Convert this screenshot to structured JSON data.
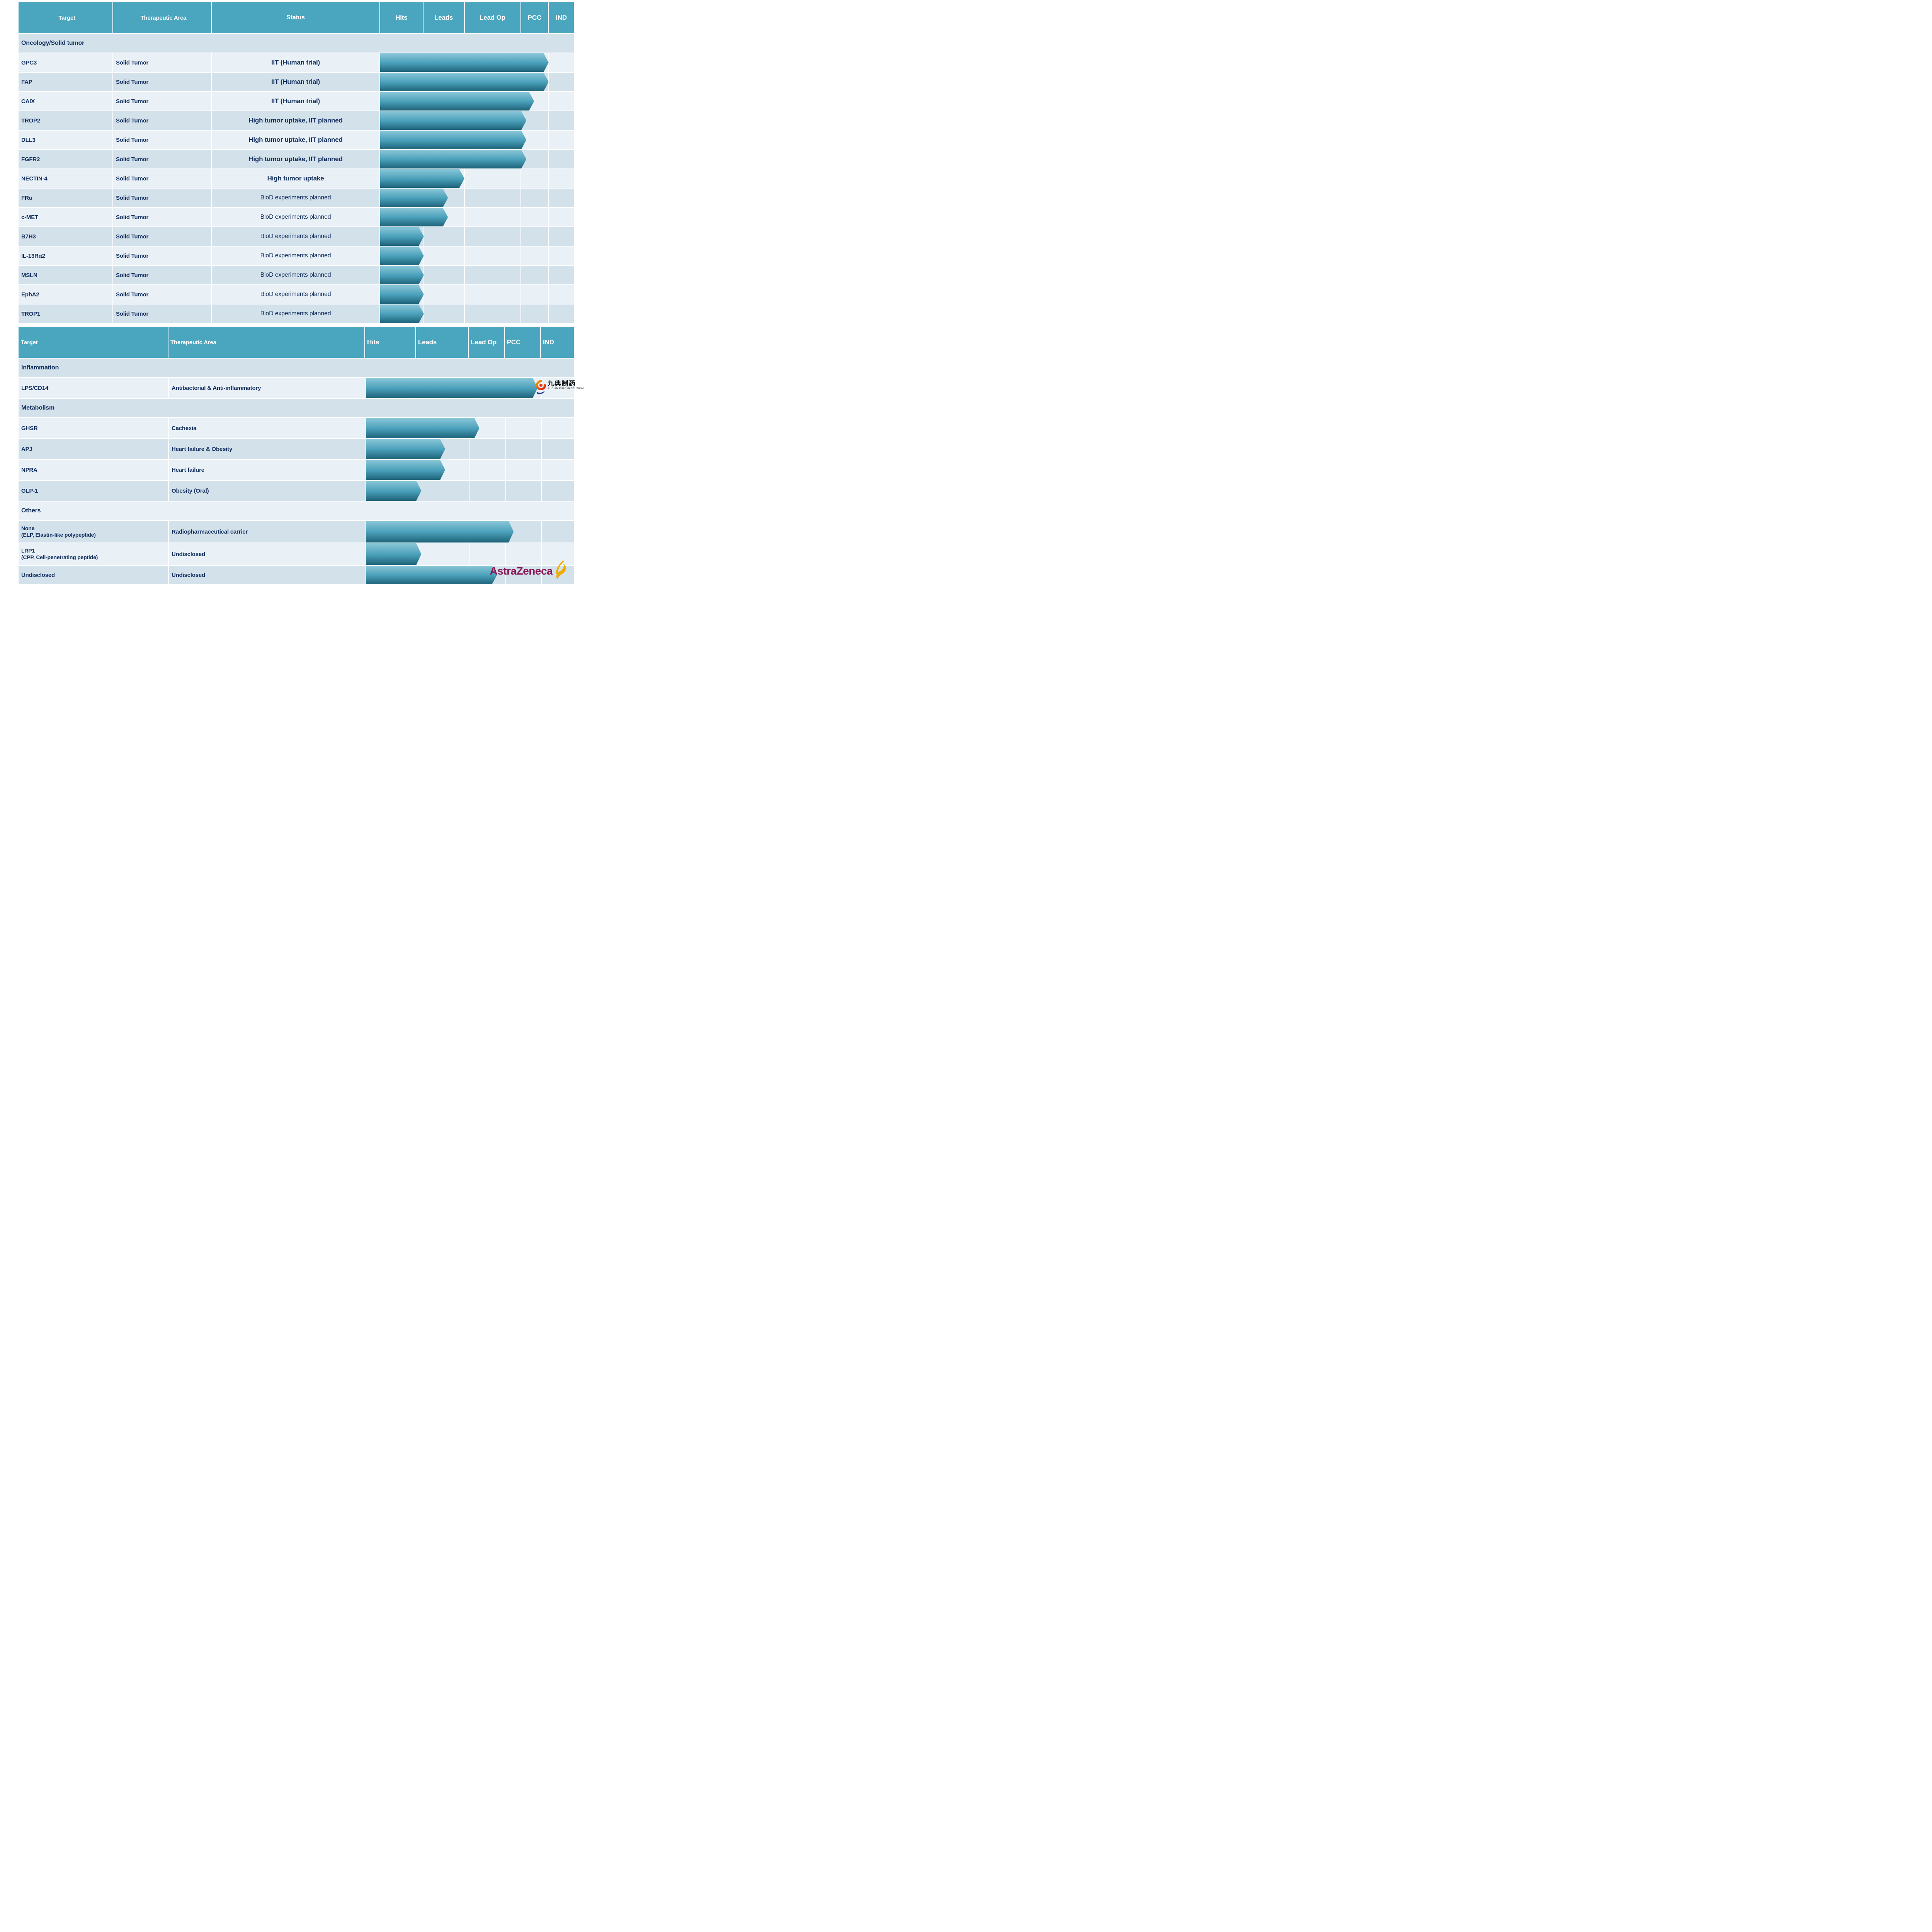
{
  "colors": {
    "header_teal": "#4aa6bf",
    "row_light": "#e9f1f7",
    "row_dark": "#d3e1eb",
    "text_navy": "#14305f",
    "arrow_gradient_top": "#8ac7d8",
    "arrow_gradient_mid": "#4aa0ba",
    "arrow_gradient_bottom": "#1e6379",
    "astrazeneca_mulberry": "#8a1a55",
    "astrazeneca_gold": "#f0ab00"
  },
  "table1": {
    "headers": [
      "Target",
      "Therapeutic Area",
      "Status",
      "Hits",
      "Leads",
      "Lead Op",
      "PCC",
      "IND"
    ],
    "section": "Oncology/Solid tumor",
    "rows": [
      {
        "target": "GPC3",
        "area": "Solid Tumor",
        "status": "IIT (Human trial)",
        "status_bold": true,
        "shade": "light",
        "bar_pct": 87
      },
      {
        "target": "FAP",
        "area": "Solid Tumor",
        "status": "IIT (Human trial)",
        "status_bold": true,
        "shade": "dark",
        "bar_pct": 87
      },
      {
        "target": "CAIX",
        "area": "Solid Tumor",
        "status": "IIT (Human trial)",
        "status_bold": true,
        "shade": "light",
        "bar_pct": 79.5
      },
      {
        "target": "TROP2",
        "area": "Solid Tumor",
        "status": "High tumor uptake, IIT planned",
        "status_bold": true,
        "shade": "dark",
        "bar_pct": 75.5
      },
      {
        "target": "DLL3",
        "area": "Solid Tumor",
        "status": "High tumor uptake, IIT planned",
        "status_bold": true,
        "shade": "light",
        "bar_pct": 75.5
      },
      {
        "target": "FGFR2",
        "area": "Solid Tumor",
        "status": "High tumor uptake, IIT planned",
        "status_bold": true,
        "shade": "dark",
        "bar_pct": 75.5
      },
      {
        "target": "NECTIN-4",
        "area": "Solid Tumor",
        "status": "High tumor uptake",
        "status_bold": true,
        "shade": "light",
        "bar_pct": 43.5
      },
      {
        "target": "FRα",
        "area": "Solid Tumor",
        "status": "BioD experiments planned",
        "status_bold": false,
        "shade": "dark",
        "bar_pct": 35
      },
      {
        "target": "c-MET",
        "area": "Solid Tumor",
        "status": "BioD experiments planned",
        "status_bold": false,
        "shade": "light",
        "bar_pct": 35
      },
      {
        "target": "B7H3",
        "area": "Solid Tumor",
        "status": "BioD experiments planned",
        "status_bold": false,
        "shade": "dark",
        "bar_pct": 22.5
      },
      {
        "target": "IL-13Rα2",
        "area": "Solid Tumor",
        "status": "BioD experiments planned",
        "status_bold": false,
        "shade": "light",
        "bar_pct": 22.5
      },
      {
        "target": "MSLN",
        "area": "Solid Tumor",
        "status": "BioD experiments planned",
        "status_bold": false,
        "shade": "dark",
        "bar_pct": 22.5
      },
      {
        "target": "EphA2",
        "area": "Solid Tumor",
        "status": "BioD experiments planned",
        "status_bold": false,
        "shade": "light",
        "bar_pct": 22.5
      },
      {
        "target": "TROP1",
        "area": "Solid Tumor",
        "status": "BioD experiments planned",
        "status_bold": false,
        "shade": "dark",
        "bar_pct": 22.5
      }
    ]
  },
  "table2": {
    "headers": [
      "Target",
      "Therapeutic Area",
      "Hits",
      "Leads",
      "Lead Op",
      "PCC",
      "IND"
    ],
    "sections": [
      {
        "label": "Inflammation",
        "shade": "dark",
        "rows": [
          {
            "target": "LPS/CD14",
            "area": "Antibacterial & Anti-inflammatory",
            "shade": "light",
            "bar_pct": 82.6,
            "logo": "jiudian"
          }
        ]
      },
      {
        "label": "Metabolism",
        "shade": "dark",
        "rows": [
          {
            "target": "GHSR",
            "area": "Cachexia",
            "shade": "light",
            "bar_pct": 54.5
          },
          {
            "target": "APJ",
            "area": "Heart failure & Obesity",
            "shade": "dark",
            "bar_pct": 38
          },
          {
            "target": "NPRA",
            "area": "Heart failure",
            "shade": "light",
            "bar_pct": 38
          },
          {
            "target": "GLP-1",
            "area": "Obesity (Oral)",
            "shade": "dark",
            "bar_pct": 26.5
          }
        ]
      },
      {
        "label": "Others",
        "shade": "light",
        "rows": [
          {
            "target": "None",
            "target_sub": "(ELP, Elastin-like polypeptide)",
            "area": "Radiopharmaceutical carrier",
            "shade": "dark",
            "bar_pct": 71,
            "tall": true
          },
          {
            "target": "LRP1",
            "target_sub": "(CPP, Cell-penetrating peptide)",
            "area": "Undisclosed",
            "shade": "light",
            "bar_pct": 26.5,
            "tall": true
          },
          {
            "target": "Undisclosed",
            "area": "Undisclosed",
            "shade": "dark",
            "bar_pct": 63,
            "short": true,
            "logo": "astrazeneca"
          }
        ]
      }
    ]
  },
  "logos": {
    "jiudian": {
      "cjk": "九典制药",
      "sub": "JIUDIAN PHARMACEUTICAL",
      "icon": "jiudian-swirl-icon"
    },
    "astrazeneca": {
      "text": "AstraZeneca",
      "icon": "astrazeneca-swoosh-icon"
    }
  }
}
